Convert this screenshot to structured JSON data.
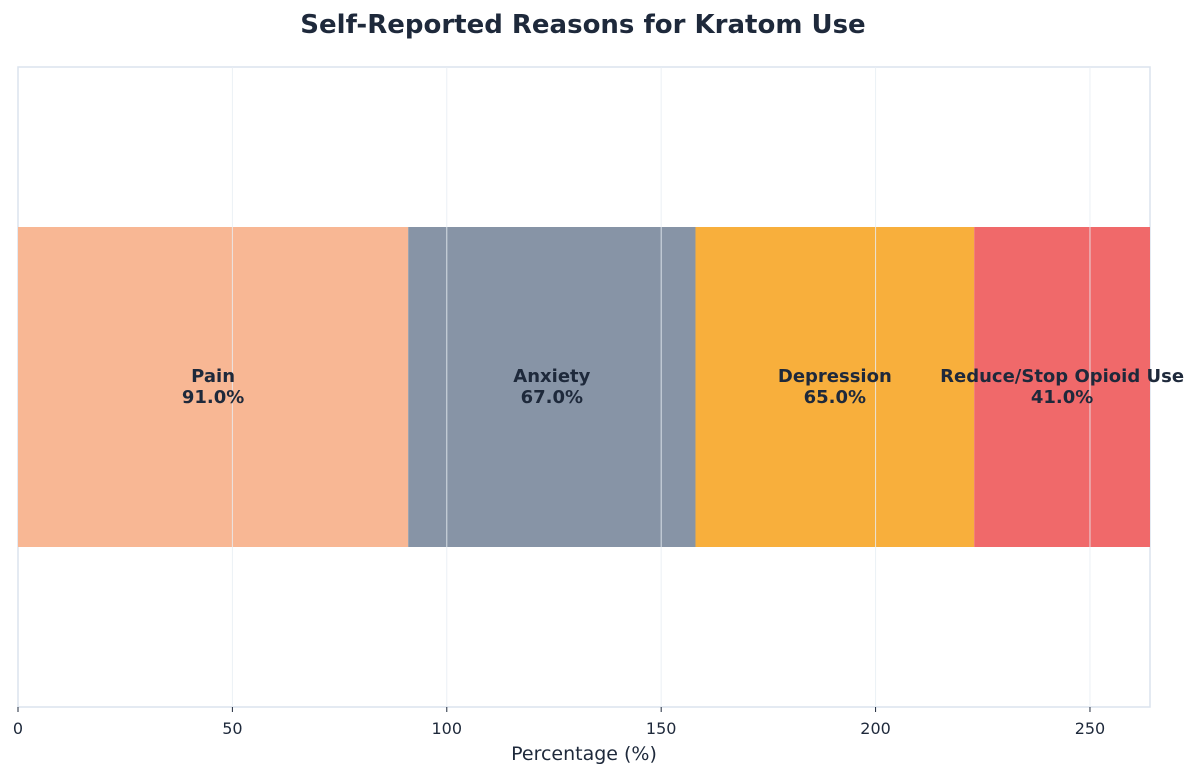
{
  "chart_data": {
    "type": "bar",
    "orientation": "horizontal-stacked",
    "title": "Self-Reported Reasons for Kratom Use",
    "xlabel": "Percentage (%)",
    "ylabel": "",
    "xlim": [
      0,
      264
    ],
    "xticks": [
      0,
      50,
      100,
      150,
      200,
      250
    ],
    "grid": true,
    "legend": "none",
    "series": [
      {
        "name": "Pain",
        "value": 91.0,
        "display": "91.0%",
        "color": "#f8b794"
      },
      {
        "name": "Anxiety",
        "value": 67.0,
        "display": "67.0%",
        "color": "#8794a6"
      },
      {
        "name": "Depression",
        "value": 65.0,
        "display": "65.0%",
        "color": "#f8af3c"
      },
      {
        "name": "Reduce/Stop Opioid Use",
        "value": 41.0,
        "display": "41.0%",
        "color": "#f0696a"
      }
    ]
  },
  "colors": {
    "text": "#1e293b",
    "axis": "#dbe3ee",
    "grid": "#eef2f7"
  }
}
